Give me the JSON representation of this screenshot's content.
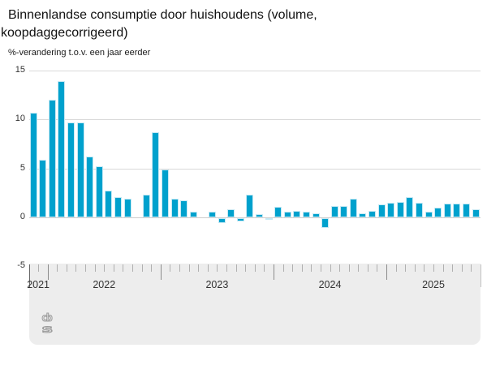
{
  "title_lines": [
    "Binnenlandse consumptie door huishoudens (volume,",
    "koopdaggecorrigeerd)"
  ],
  "subtitle": "%-verandering t.o.v. een jaar eerder",
  "logo": {
    "name": "cbs-logo",
    "text_top": "cb",
    "text_bottom": "s"
  },
  "colors": {
    "bar": "#00a1cd",
    "bar_outline": "#c6e9f4",
    "grid": "#d9d9d9",
    "axis_band": "#ededed",
    "tick": "#b0b0b0",
    "year_tick": "#8c8c8c",
    "label_text": "#333333"
  },
  "chart_data": {
    "type": "bar",
    "title": "Binnenlandse consumptie door huishoudens (volume, koopdaggecorrigeerd)",
    "ylabel": "%-verandering t.o.v. een jaar eerder",
    "grid": true,
    "legend": false,
    "ylim": [
      -5,
      15
    ],
    "y_ticks": [
      15,
      10,
      5,
      0,
      -5
    ],
    "x_year_labels": [
      "2021",
      "2022",
      "2023",
      "2024",
      "2025"
    ],
    "x": [
      "2021-11",
      "2021-12",
      "2022-01",
      "2022-02",
      "2022-03",
      "2022-04",
      "2022-05",
      "2022-06",
      "2022-07",
      "2022-08",
      "2022-09",
      "2022-10",
      "2022-11",
      "2022-12",
      "2023-01",
      "2023-02",
      "2023-03",
      "2023-04",
      "2023-05",
      "2023-06",
      "2023-07",
      "2023-08",
      "2023-09",
      "2023-10",
      "2023-11",
      "2023-12",
      "2024-01",
      "2024-02",
      "2024-03",
      "2024-04",
      "2024-05",
      "2024-06",
      "2024-07",
      "2024-08",
      "2024-09",
      "2024-10",
      "2024-11",
      "2024-12",
      "2025-01",
      "2025-02",
      "2025-03",
      "2025-04",
      "2025-05",
      "2025-06",
      "2025-07",
      "2025-08",
      "2025-09",
      "2025-10"
    ],
    "values": [
      10.7,
      5.9,
      12.0,
      13.9,
      9.7,
      9.7,
      6.2,
      5.2,
      2.7,
      2.1,
      1.9,
      0.0,
      2.3,
      8.7,
      4.9,
      1.9,
      1.7,
      0.6,
      0.0,
      0.6,
      -0.5,
      0.8,
      -0.3,
      2.3,
      0.3,
      -0.1,
      1.1,
      0.6,
      0.7,
      0.6,
      0.4,
      -1.0,
      1.2,
      1.2,
      1.9,
      0.4,
      0.7,
      1.3,
      1.5,
      1.6,
      2.1,
      1.5,
      0.6,
      1.0,
      1.4,
      1.4,
      1.4,
      0.8
    ]
  }
}
